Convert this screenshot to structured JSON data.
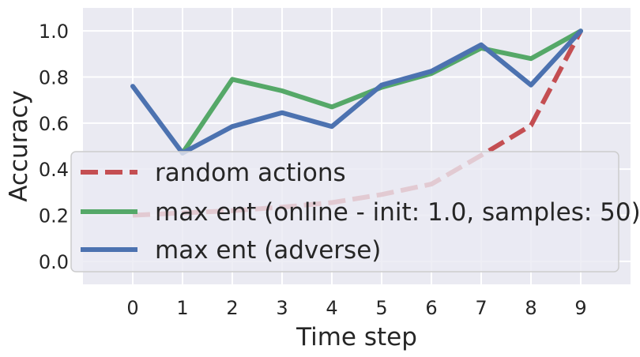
{
  "chart_data": {
    "type": "line",
    "xlabel": "Time step",
    "ylabel": "Accuracy",
    "x": [
      0,
      1,
      2,
      3,
      4,
      5,
      6,
      7,
      8,
      9
    ],
    "xticks": [
      "0",
      "1",
      "2",
      "3",
      "4",
      "5",
      "6",
      "7",
      "8",
      "9"
    ],
    "xlim": [
      -1,
      10
    ],
    "yticks": [
      "0.0",
      "0.2",
      "0.4",
      "0.6",
      "0.8",
      "1.0"
    ],
    "ylim": [
      -0.1,
      1.1
    ],
    "grid": true,
    "background": "#eaeaf2",
    "legend_position": "lower-left",
    "series": [
      {
        "name": "random actions",
        "color": "#c44e52",
        "style": "dashed",
        "values": [
          0.2,
          0.21,
          0.22,
          0.235,
          0.255,
          0.29,
          0.335,
          0.46,
          0.59,
          1.0
        ]
      },
      {
        "name": "max ent (online - init: 1.0, samples: 50)",
        "color": "#55a868",
        "style": "solid",
        "values": [
          null,
          0.47,
          0.79,
          0.74,
          0.67,
          0.755,
          0.815,
          0.925,
          0.88,
          1.0
        ]
      },
      {
        "name": "max ent (adverse)",
        "color": "#4c72b0",
        "style": "solid",
        "values": [
          0.76,
          0.47,
          0.585,
          0.645,
          0.585,
          0.765,
          0.825,
          0.94,
          0.765,
          1.0
        ]
      }
    ]
  }
}
